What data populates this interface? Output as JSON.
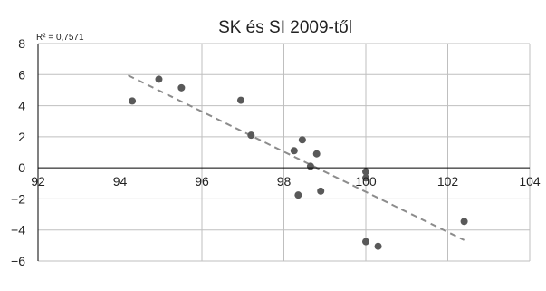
{
  "chart_data": {
    "type": "scatter",
    "title": "SK és SI 2009-től",
    "xlabel": "",
    "ylabel": "",
    "xlim": [
      92,
      104
    ],
    "ylim": [
      -6,
      8
    ],
    "x_ticks": [
      92,
      94,
      96,
      98,
      100,
      102,
      104
    ],
    "y_ticks": [
      -6,
      -4,
      -2,
      0,
      2,
      4,
      6,
      8
    ],
    "x_tick_labels": [
      "92",
      "94",
      "96",
      "98",
      "100",
      "102",
      "104"
    ],
    "y_tick_labels": [
      "−6",
      "−4",
      "−2",
      "0",
      "2",
      "4",
      "6",
      "8"
    ],
    "grid": true,
    "points": [
      {
        "x": 94.3,
        "y": 4.3
      },
      {
        "x": 94.95,
        "y": 5.7
      },
      {
        "x": 95.5,
        "y": 5.15
      },
      {
        "x": 96.95,
        "y": 4.35
      },
      {
        "x": 97.2,
        "y": 2.1
      },
      {
        "x": 98.25,
        "y": 1.1
      },
      {
        "x": 98.45,
        "y": 1.8
      },
      {
        "x": 98.65,
        "y": 0.1
      },
      {
        "x": 98.8,
        "y": 0.9
      },
      {
        "x": 98.9,
        "y": -1.5
      },
      {
        "x": 98.35,
        "y": -1.75
      },
      {
        "x": 100.0,
        "y": -0.25
      },
      {
        "x": 100.0,
        "y": -0.65
      },
      {
        "x": 100.0,
        "y": -4.75
      },
      {
        "x": 100.3,
        "y": -5.05
      },
      {
        "x": 102.4,
        "y": -3.45
      }
    ],
    "trendline": {
      "style": "dashed",
      "x": [
        94.2,
        102.4
      ],
      "y": [
        5.95,
        -4.65
      ],
      "r_squared_label": "R² = 0,7571"
    },
    "colors": {
      "points": "#595959",
      "trendline": "#8c8c8c",
      "grid": "#bfbfbf",
      "axis": "#000000"
    }
  }
}
